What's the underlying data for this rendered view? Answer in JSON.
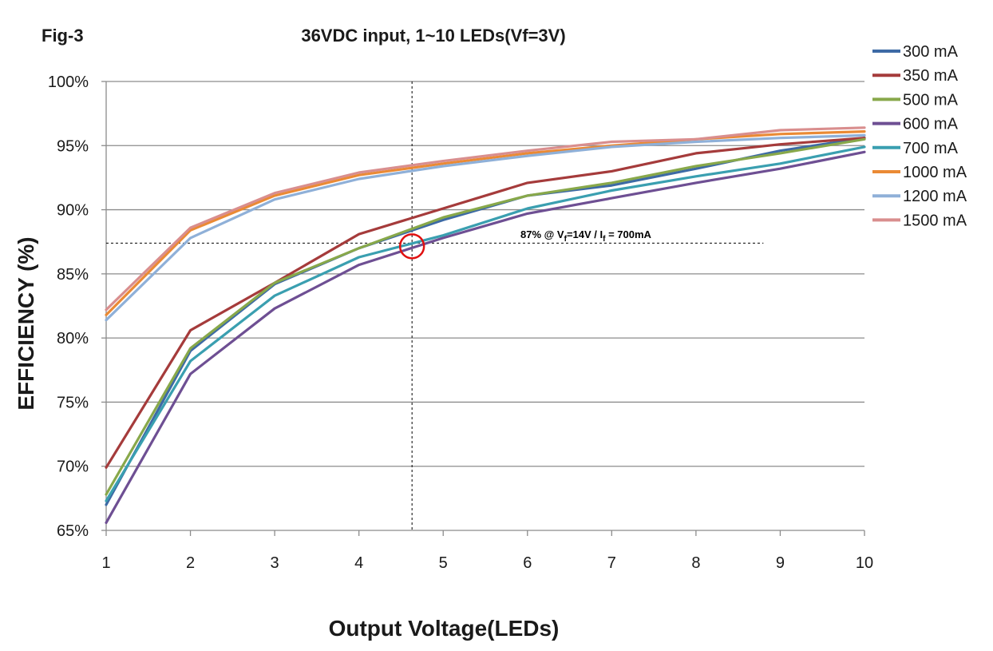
{
  "figure_label": "Fig-3",
  "chart_data": {
    "type": "line",
    "title": "36VDC input, 1~10 LEDs(Vf=3V)",
    "xlabel": "Output Voltage(LEDs)",
    "ylabel": "EFFICIENCY (%)",
    "x": [
      1,
      2,
      3,
      4,
      5,
      6,
      7,
      8,
      9,
      10
    ],
    "x_tick_labels": [
      "1",
      "2",
      "3",
      "4",
      "5",
      "6",
      "7",
      "8",
      "9",
      "10"
    ],
    "xlim": [
      1,
      10
    ],
    "ylim": [
      65,
      100
    ],
    "y_ticks": [
      65,
      70,
      75,
      80,
      85,
      90,
      95,
      100
    ],
    "y_tick_labels": [
      "65%",
      "70%",
      "75%",
      "80%",
      "85%",
      "90%",
      "95%",
      "100%"
    ],
    "grid": "horizontal",
    "legend_position": "right",
    "series": [
      {
        "name": "300 mA",
        "color": "#3d6aa5",
        "values": [
          67.0,
          79.0,
          84.2,
          87.0,
          89.2,
          91.1,
          91.9,
          93.2,
          94.6,
          95.6
        ]
      },
      {
        "name": "350 mA",
        "color": "#a53b3b",
        "values": [
          69.9,
          80.6,
          84.3,
          88.1,
          90.1,
          92.1,
          93.0,
          94.4,
          95.1,
          95.6
        ]
      },
      {
        "name": "500 mA",
        "color": "#88a84a",
        "values": [
          67.8,
          79.2,
          84.3,
          87.0,
          89.4,
          91.1,
          92.1,
          93.4,
          94.4,
          95.5
        ]
      },
      {
        "name": "600 mA",
        "color": "#6e4f93",
        "values": [
          65.6,
          77.2,
          82.3,
          85.7,
          87.8,
          89.7,
          90.9,
          92.1,
          93.2,
          94.5
        ]
      },
      {
        "name": "700 mA",
        "color": "#3a9fb0",
        "values": [
          67.3,
          78.2,
          83.3,
          86.3,
          88.0,
          90.1,
          91.5,
          92.6,
          93.6,
          94.9
        ]
      },
      {
        "name": "1000 mA",
        "color": "#ea8a35",
        "values": [
          81.8,
          88.4,
          91.1,
          92.7,
          93.6,
          94.4,
          95.0,
          95.5,
          95.9,
          96.1
        ]
      },
      {
        "name": "1200 mA",
        "color": "#8fb0d8",
        "values": [
          81.4,
          87.8,
          90.8,
          92.4,
          93.4,
          94.2,
          94.9,
          95.3,
          95.6,
          95.8
        ]
      },
      {
        "name": "1500 mA",
        "color": "#d98e8e",
        "values": [
          82.2,
          88.6,
          91.3,
          92.9,
          93.8,
          94.6,
          95.3,
          95.5,
          96.2,
          96.4
        ]
      }
    ],
    "annotation": {
      "text_main": "87% @ V",
      "text_sub1": "f",
      "text_mid": "=14V / I",
      "text_sub2": "f",
      "text_end": " = 700mA",
      "x": 4.63,
      "y": 87.4
    }
  }
}
